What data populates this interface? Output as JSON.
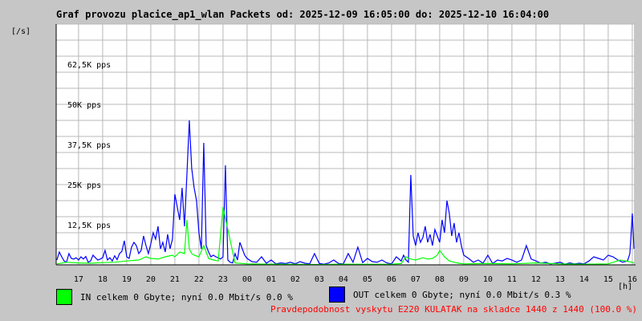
{
  "chart_data": {
    "type": "area",
    "title": "Graf provozu placice_ap1_wlan Packets od: 2025-12-09 16:05:00 do: 2025-12-10 16:04:00",
    "ylabel": "[/s]",
    "xlabel": "[h]",
    "ylim": [
      0,
      75000
    ],
    "xlim": [
      16.07,
      40.07
    ],
    "grid": true,
    "y_ticks": [
      12500,
      25000,
      37500,
      50000,
      62500
    ],
    "y_tick_labels": [
      "12,5K pps",
      "25K pps",
      "37,5K pps",
      "50K pps",
      "62,5K pps"
    ],
    "x_ticks": [
      17,
      18,
      19,
      20,
      21,
      22,
      23,
      24,
      25,
      26,
      27,
      28,
      29,
      30,
      31,
      32,
      33,
      34,
      35,
      36,
      37,
      38,
      39,
      40
    ],
    "x_tick_labels": [
      "17",
      "18",
      "19",
      "20",
      "21",
      "22",
      "23",
      "00",
      "01",
      "02",
      "03",
      "04",
      "05",
      "06",
      "07",
      "08",
      "09",
      "10",
      "11",
      "12",
      "13",
      "14",
      "15",
      "16"
    ],
    "series": [
      {
        "name": "OUT",
        "color": "#0000ff",
        "x": [
          16.1,
          16.2,
          16.3,
          16.4,
          16.5,
          16.6,
          16.7,
          16.8,
          16.9,
          17.0,
          17.1,
          17.2,
          17.3,
          17.4,
          17.5,
          17.6,
          17.7,
          17.8,
          17.9,
          18.0,
          18.1,
          18.2,
          18.3,
          18.4,
          18.5,
          18.6,
          18.7,
          18.8,
          18.9,
          19.0,
          19.1,
          19.2,
          19.3,
          19.4,
          19.5,
          19.6,
          19.7,
          19.8,
          19.9,
          20.0,
          20.1,
          20.2,
          20.3,
          20.4,
          20.5,
          20.6,
          20.7,
          20.8,
          20.9,
          21.0,
          21.1,
          21.2,
          21.3,
          21.4,
          21.5,
          21.6,
          21.7,
          21.8,
          21.9,
          22.0,
          22.1,
          22.2,
          22.3,
          22.4,
          22.5,
          22.6,
          22.7,
          22.8,
          22.9,
          23.0,
          23.1,
          23.2,
          23.3,
          23.4,
          23.5,
          23.6,
          23.7,
          23.8,
          23.9,
          24.0,
          24.2,
          24.4,
          24.6,
          24.8,
          25.0,
          25.2,
          25.4,
          25.6,
          25.8,
          26.0,
          26.2,
          26.4,
          26.6,
          26.8,
          27.0,
          27.2,
          27.4,
          27.6,
          27.8,
          28.0,
          28.2,
          28.4,
          28.6,
          28.8,
          29.0,
          29.2,
          29.4,
          29.6,
          29.8,
          30.0,
          30.2,
          30.4,
          30.5,
          30.6,
          30.7,
          30.8,
          30.9,
          31.0,
          31.1,
          31.2,
          31.3,
          31.4,
          31.5,
          31.6,
          31.7,
          31.8,
          31.9,
          32.0,
          32.1,
          32.2,
          32.3,
          32.4,
          32.5,
          32.6,
          32.7,
          32.8,
          32.9,
          33.0,
          33.2,
          33.4,
          33.6,
          33.8,
          34.0,
          34.2,
          34.4,
          34.6,
          34.8,
          35.0,
          35.2,
          35.4,
          35.6,
          35.8,
          36.0,
          36.2,
          36.4,
          36.6,
          36.8,
          37.0,
          37.2,
          37.4,
          37.6,
          37.8,
          38.0,
          38.2,
          38.4,
          38.6,
          38.8,
          39.0,
          39.2,
          39.4,
          39.6,
          39.8,
          39.9,
          40.0,
          40.07
        ],
        "values": [
          1500,
          4000,
          2500,
          1200,
          800,
          3500,
          2000,
          1800,
          2200,
          1500,
          2500,
          1800,
          2600,
          800,
          1200,
          3000,
          2200,
          1500,
          1800,
          2200,
          4500,
          1500,
          2200,
          1200,
          2800,
          1600,
          3500,
          4200,
          7500,
          2500,
          2000,
          5500,
          7000,
          6000,
          3500,
          4500,
          9000,
          6000,
          3500,
          6500,
          10000,
          8000,
          12000,
          5000,
          7000,
          4000,
          9500,
          5000,
          8000,
          22000,
          18000,
          14000,
          24000,
          12000,
          28000,
          45000,
          30000,
          24000,
          20000,
          10000,
          5000,
          38000,
          6000,
          4000,
          2500,
          3000,
          2500,
          2200,
          1800,
          2500,
          31000,
          1500,
          800,
          600,
          3500,
          1500,
          7000,
          5000,
          3000,
          2000,
          1000,
          800,
          2500,
          500,
          1500,
          300,
          600,
          400,
          800,
          300,
          1000,
          500,
          300,
          3500,
          400,
          200,
          600,
          1500,
          400,
          300,
          3500,
          800,
          5500,
          700,
          2000,
          1000,
          800,
          1500,
          600,
          300,
          2500,
          1200,
          3000,
          1500,
          800,
          28000,
          9000,
          6000,
          10000,
          7000,
          8500,
          12000,
          7000,
          9500,
          6000,
          11000,
          9000,
          7000,
          14000,
          10000,
          20000,
          16000,
          9000,
          13000,
          7000,
          10000,
          6000,
          3000,
          2000,
          800,
          1500,
          500,
          3000,
          400,
          1500,
          1200,
          2000,
          1500,
          800,
          1500,
          6000,
          1800,
          1200,
          500,
          800,
          300,
          500,
          800,
          200,
          600,
          300,
          500,
          300,
          1200,
          2500,
          2000,
          1500,
          3000,
          2500,
          1500,
          800,
          1200,
          3500,
          16000,
          5000
        ],
        "total_label": "OUT celkem 0 Gbyte; nyní   0.0 Mbit/s 0.3 %"
      },
      {
        "name": "IN",
        "color": "#00ff00",
        "x": [
          16.1,
          16.5,
          17.0,
          17.5,
          18.0,
          18.5,
          19.0,
          19.5,
          19.8,
          20.0,
          20.3,
          20.6,
          20.9,
          21.0,
          21.2,
          21.4,
          21.5,
          21.6,
          21.7,
          21.8,
          22.0,
          22.2,
          22.4,
          22.6,
          22.8,
          23.0,
          23.5,
          24.0,
          25.0,
          26.0,
          27.0,
          28.0,
          29.0,
          30.0,
          30.4,
          30.6,
          30.8,
          31.0,
          31.3,
          31.5,
          31.7,
          31.9,
          32.0,
          32.2,
          32.4,
          32.6,
          32.8,
          33.0,
          34.0,
          35.0,
          36.0,
          37.0,
          38.0,
          39.0,
          39.5,
          40.0,
          40.07
        ],
        "values": [
          300,
          800,
          600,
          500,
          700,
          800,
          1200,
          1500,
          2500,
          2000,
          1800,
          2500,
          3000,
          2500,
          4000,
          3500,
          14000,
          5000,
          3500,
          3000,
          2500,
          6000,
          2000,
          1500,
          1200,
          18000,
          600,
          300,
          200,
          150,
          100,
          200,
          150,
          200,
          400,
          2500,
          1800,
          1500,
          2200,
          1800,
          2000,
          3000,
          4500,
          2500,
          1200,
          800,
          500,
          300,
          400,
          300,
          600,
          300,
          200,
          300,
          1500,
          800,
          500
        ],
        "total_label": "IN celkem 0 Gbyte; nyní   0.0 Mbit/s 0.0 %"
      }
    ]
  },
  "footer": {
    "note": "Pravdepodobnost vyskytu E220 KULATAK na skladce 1440 z 1440 (100.0 %)"
  }
}
